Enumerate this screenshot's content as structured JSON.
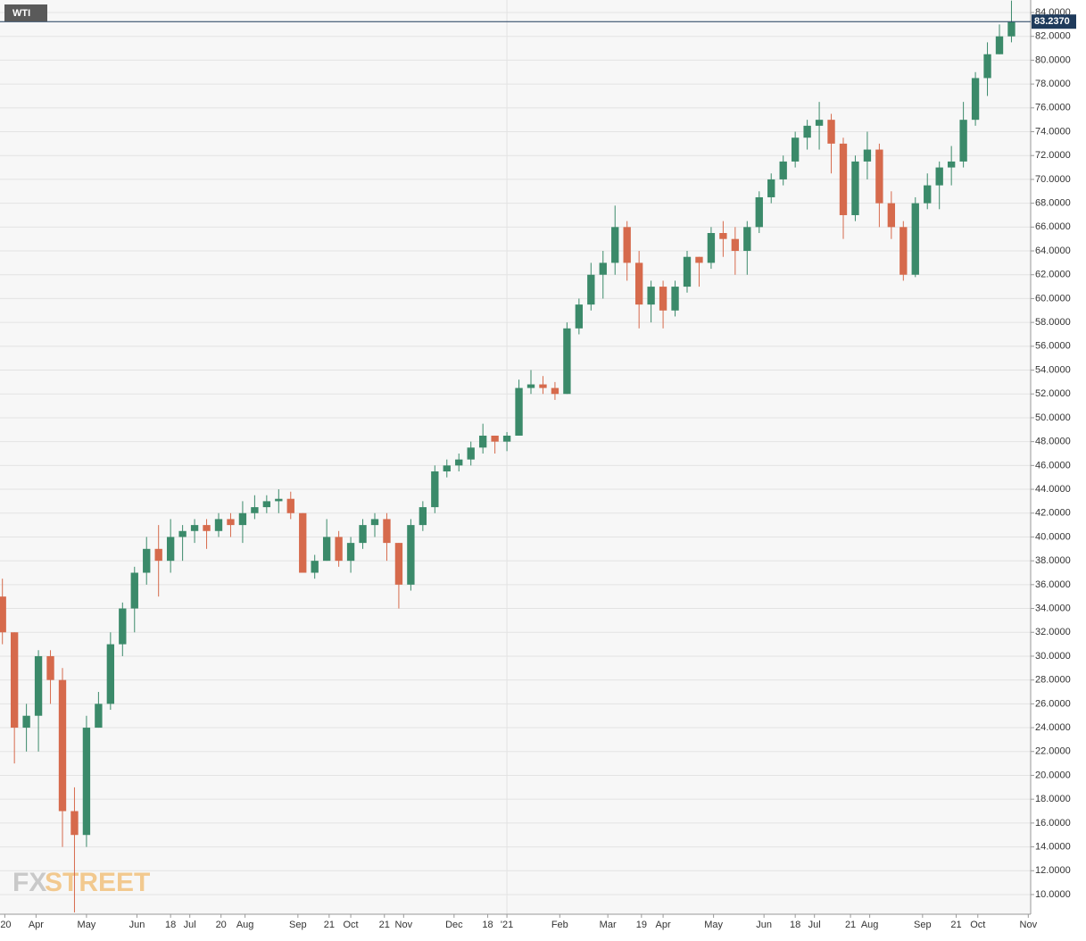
{
  "chart_data": {
    "type": "candlestick",
    "title": "WTI",
    "watermark": {
      "prefix": "FX",
      "suffix": "STREET"
    },
    "up_color": "#3b8a6a",
    "down_color": "#d66a4c",
    "grid": true,
    "xlim": [
      -1,
      428
    ],
    "ylim": [
      8.35,
      85.05
    ],
    "xticks": [
      {
        "value": 1,
        "label": "'20"
      },
      {
        "value": 14,
        "label": "Apr"
      },
      {
        "value": 35,
        "label": "May"
      },
      {
        "value": 56,
        "label": "Jun"
      },
      {
        "value": 70,
        "label": "18"
      },
      {
        "value": 78,
        "label": "Jul"
      },
      {
        "value": 91,
        "label": "20"
      },
      {
        "value": 101,
        "label": "Aug"
      },
      {
        "value": 123,
        "label": "Sep"
      },
      {
        "value": 136,
        "label": "21"
      },
      {
        "value": 145,
        "label": "Oct"
      },
      {
        "value": 159,
        "label": "21"
      },
      {
        "value": 167,
        "label": "Nov"
      },
      {
        "value": 188,
        "label": "Dec"
      },
      {
        "value": 202,
        "label": "18"
      },
      {
        "value": 210,
        "label": "'21"
      },
      {
        "value": 232,
        "label": "Feb"
      },
      {
        "value": 252,
        "label": "Mar"
      },
      {
        "value": 266,
        "label": "19"
      },
      {
        "value": 275,
        "label": "Apr"
      },
      {
        "value": 296,
        "label": "May"
      },
      {
        "value": 317,
        "label": "Jun"
      },
      {
        "value": 330,
        "label": "18"
      },
      {
        "value": 338,
        "label": "Jul"
      },
      {
        "value": 353,
        "label": "21"
      },
      {
        "value": 361,
        "label": "Aug"
      },
      {
        "value": 383,
        "label": "Sep"
      },
      {
        "value": 397,
        "label": "21"
      },
      {
        "value": 406,
        "label": "Oct"
      },
      {
        "value": 427,
        "label": "Nov"
      }
    ],
    "year_gridline": 210,
    "yticks": [
      {
        "value": 10,
        "label": "10.0000"
      },
      {
        "value": 12,
        "label": "12.0000"
      },
      {
        "value": 14,
        "label": "14.0000"
      },
      {
        "value": 16,
        "label": "16.0000"
      },
      {
        "value": 18,
        "label": "18.0000"
      },
      {
        "value": 20,
        "label": "20.0000"
      },
      {
        "value": 22,
        "label": "22.0000"
      },
      {
        "value": 24,
        "label": "24.0000"
      },
      {
        "value": 26,
        "label": "26.0000"
      },
      {
        "value": 28,
        "label": "28.0000"
      },
      {
        "value": 30,
        "label": "30.0000"
      },
      {
        "value": 32,
        "label": "32.0000"
      },
      {
        "value": 34,
        "label": "34.0000"
      },
      {
        "value": 36,
        "label": "36.0000"
      },
      {
        "value": 38,
        "label": "38.0000"
      },
      {
        "value": 40,
        "label": "40.0000"
      },
      {
        "value": 42,
        "label": "42.0000"
      },
      {
        "value": 44,
        "label": "44.0000"
      },
      {
        "value": 46,
        "label": "46.0000"
      },
      {
        "value": 48,
        "label": "48.0000"
      },
      {
        "value": 50,
        "label": "50.0000"
      },
      {
        "value": 52,
        "label": "52.0000"
      },
      {
        "value": 54,
        "label": "54.0000"
      },
      {
        "value": 56,
        "label": "56.0000"
      },
      {
        "value": 58,
        "label": "58.0000"
      },
      {
        "value": 60,
        "label": "60.0000"
      },
      {
        "value": 62,
        "label": "62.0000"
      },
      {
        "value": 64,
        "label": "64.0000"
      },
      {
        "value": 66,
        "label": "66.0000"
      },
      {
        "value": 68,
        "label": "68.0000"
      },
      {
        "value": 70,
        "label": "70.0000"
      },
      {
        "value": 72,
        "label": "72.0000"
      },
      {
        "value": 74,
        "label": "74.0000"
      },
      {
        "value": 76,
        "label": "76.0000"
      },
      {
        "value": 78,
        "label": "78.0000"
      },
      {
        "value": 80,
        "label": "80.0000"
      },
      {
        "value": 82,
        "label": "82.0000"
      },
      {
        "value": 84,
        "label": "84.0000"
      }
    ],
    "last_price": {
      "value": 83.237,
      "label": "83.2370",
      "color": "#1f3b5c"
    },
    "x": [
      0,
      5,
      10,
      15,
      20,
      25,
      30,
      35,
      40,
      45,
      50,
      55,
      60,
      65,
      70,
      75,
      80,
      85,
      90,
      95,
      100,
      105,
      110,
      115,
      120,
      125,
      130,
      135,
      140,
      145,
      150,
      155,
      160,
      165,
      170,
      175,
      180,
      185,
      190,
      195,
      200,
      205,
      210,
      215,
      220,
      225,
      230,
      235,
      240,
      245,
      250,
      255,
      260,
      265,
      270,
      275,
      280,
      285,
      290,
      295,
      300,
      305,
      310,
      315,
      320,
      325,
      330,
      335,
      340,
      345,
      350,
      355,
      360,
      365,
      370,
      375,
      380,
      385,
      390,
      395,
      400,
      405,
      410,
      415,
      420
    ],
    "open": [
      35,
      32,
      24,
      25,
      30,
      28,
      17,
      15,
      24,
      26,
      31,
      34,
      37,
      39,
      38,
      40,
      40.5,
      41,
      40.5,
      41.5,
      41,
      42,
      42.5,
      43,
      43.2,
      42,
      37,
      38,
      40,
      38,
      39.5,
      41,
      41.5,
      39.5,
      36,
      41,
      42.5,
      45.5,
      46,
      46.5,
      47.5,
      48.5,
      48,
      48.5,
      52.5,
      52.8,
      52.5,
      52,
      57.5,
      59.5,
      62,
      63,
      66,
      63,
      59.5,
      61,
      59,
      61,
      63.5,
      63,
      65.5,
      65,
      64,
      66,
      68.5,
      70,
      71.5,
      73.5,
      74.5,
      75,
      73,
      67,
      71.5,
      72.5,
      68,
      66,
      62,
      68,
      69.5,
      71,
      71.5,
      75,
      78.5,
      80.5,
      82
    ],
    "high": [
      36.5,
      32,
      26,
      30.5,
      30.5,
      29,
      19,
      25,
      27,
      32,
      34.5,
      37.5,
      40,
      41,
      41.5,
      41,
      41.5,
      41.5,
      42,
      42,
      43,
      43.5,
      43.5,
      44,
      43.8,
      42,
      38.5,
      41.5,
      40.5,
      40,
      41.5,
      42,
      42,
      39.5,
      41.5,
      43,
      46,
      46.5,
      47,
      48,
      49.5,
      48.5,
      48.8,
      53.2,
      54,
      53.5,
      53,
      58,
      60,
      63,
      64,
      67.8,
      66.5,
      64,
      61.5,
      61.5,
      61.5,
      64,
      63.5,
      66,
      66.5,
      66,
      66.5,
      69,
      70.5,
      72,
      74,
      75,
      76.5,
      75.5,
      73.5,
      72,
      74,
      73,
      69,
      66.5,
      68.5,
      70.5,
      71.5,
      72.8,
      76.5,
      79,
      81.5,
      83,
      85
    ],
    "low": [
      31,
      21,
      22,
      22,
      26,
      14,
      8.5,
      14,
      24,
      25.5,
      30,
      32,
      36,
      35,
      37,
      38,
      39.5,
      39,
      40,
      40,
      39.5,
      41.5,
      42,
      42,
      41.5,
      37,
      36.5,
      38,
      37.5,
      37,
      39,
      40,
      38,
      34,
      35.5,
      40.5,
      42,
      45,
      45.5,
      46,
      47,
      47,
      47.2,
      48.5,
      52,
      52,
      51.5,
      52,
      57,
      59,
      60,
      62,
      61.5,
      57.5,
      58,
      57.5,
      58.5,
      60.5,
      61,
      62.5,
      63.5,
      62,
      62,
      65.5,
      68,
      69.5,
      71,
      72.5,
      72.5,
      70.5,
      65,
      66.5,
      70,
      66,
      65,
      61.5,
      61.8,
      67.5,
      67.5,
      69.5,
      71,
      74.5,
      77,
      80.5,
      81.5
    ],
    "close": [
      32,
      24,
      25,
      30,
      28,
      17,
      15,
      24,
      26,
      31,
      34,
      37,
      39,
      38,
      40,
      40.5,
      41,
      40.5,
      41.5,
      41,
      42,
      42.5,
      43,
      43.2,
      42,
      37,
      38,
      40,
      38,
      39.5,
      41,
      41.5,
      39.5,
      36,
      41,
      42.5,
      45.5,
      46,
      46.5,
      47.5,
      48.5,
      48,
      48.5,
      52.5,
      52.8,
      52.5,
      52,
      57.5,
      59.5,
      62,
      63,
      66,
      63,
      59.5,
      61,
      59,
      61,
      63.5,
      63,
      65.5,
      65,
      64,
      66,
      68.5,
      70,
      71.5,
      73.5,
      74.5,
      75,
      73,
      67,
      71.5,
      72.5,
      68,
      66,
      62,
      68,
      69.5,
      71,
      71.5,
      75,
      78.5,
      80.5,
      82,
      83.2
    ]
  }
}
